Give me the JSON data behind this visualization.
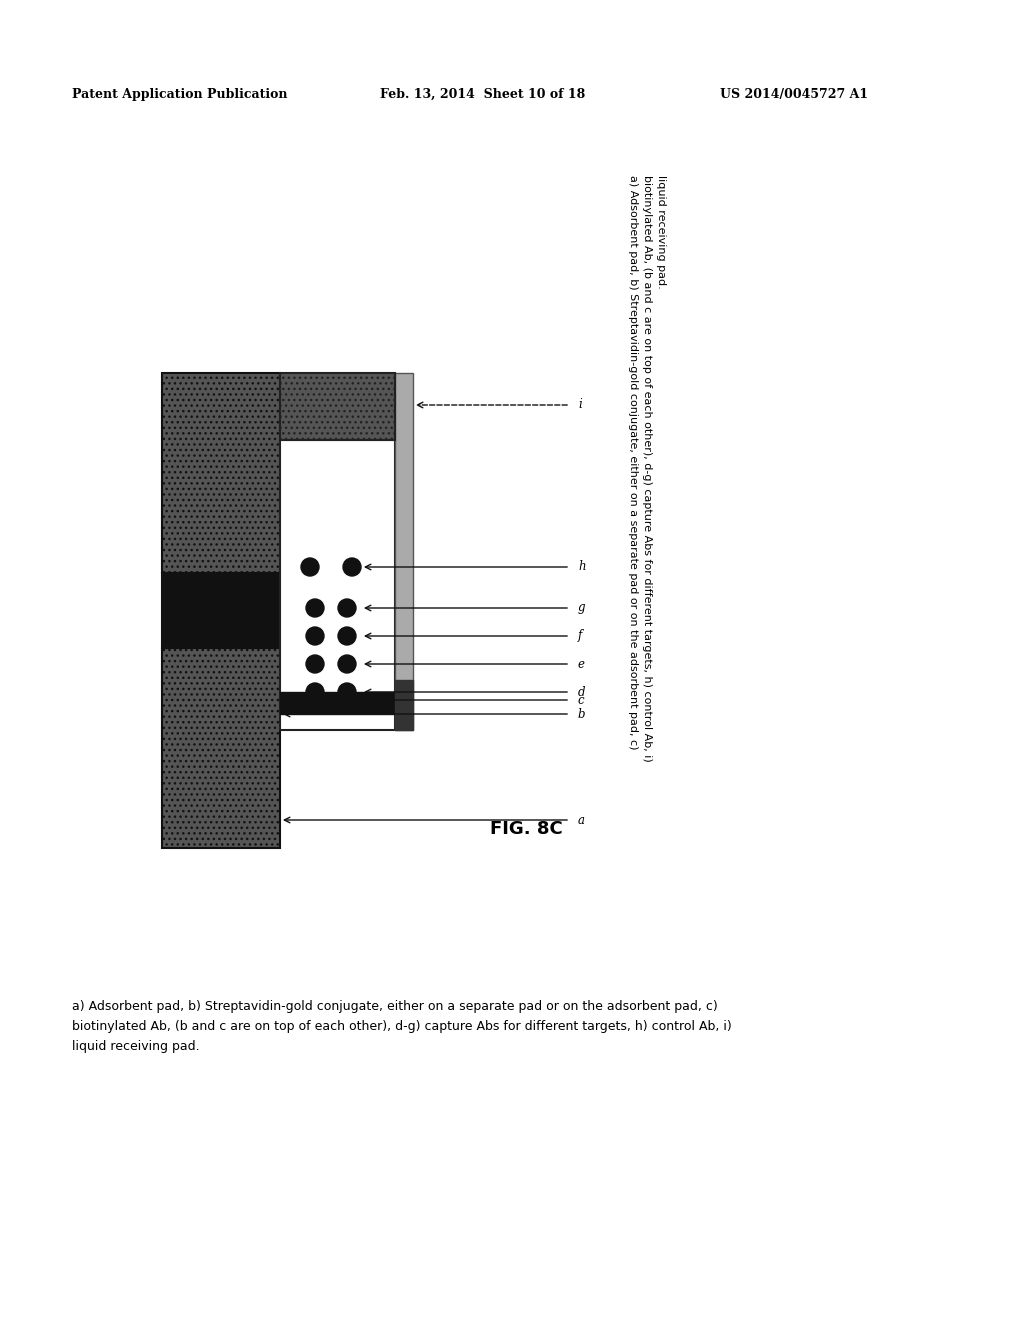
{
  "header_left": "Patent Application Publication",
  "header_mid": "Feb. 13, 2014  Sheet 10 of 18",
  "header_right": "US 2014/0045727 A1",
  "fig_label": "FIG. 8C",
  "caption_line1": "a) Adsorbent pad, b) Streptavidin-gold conjugate, either on a separate pad or on the adsorbent pad, c)",
  "caption_line2": "biotinylated Ab, (b and c are on top of each other), d-g) capture Abs for different targets, h) control Ab, i)",
  "caption_line3": "liquid receiving pad.",
  "background_color": "#ffffff"
}
